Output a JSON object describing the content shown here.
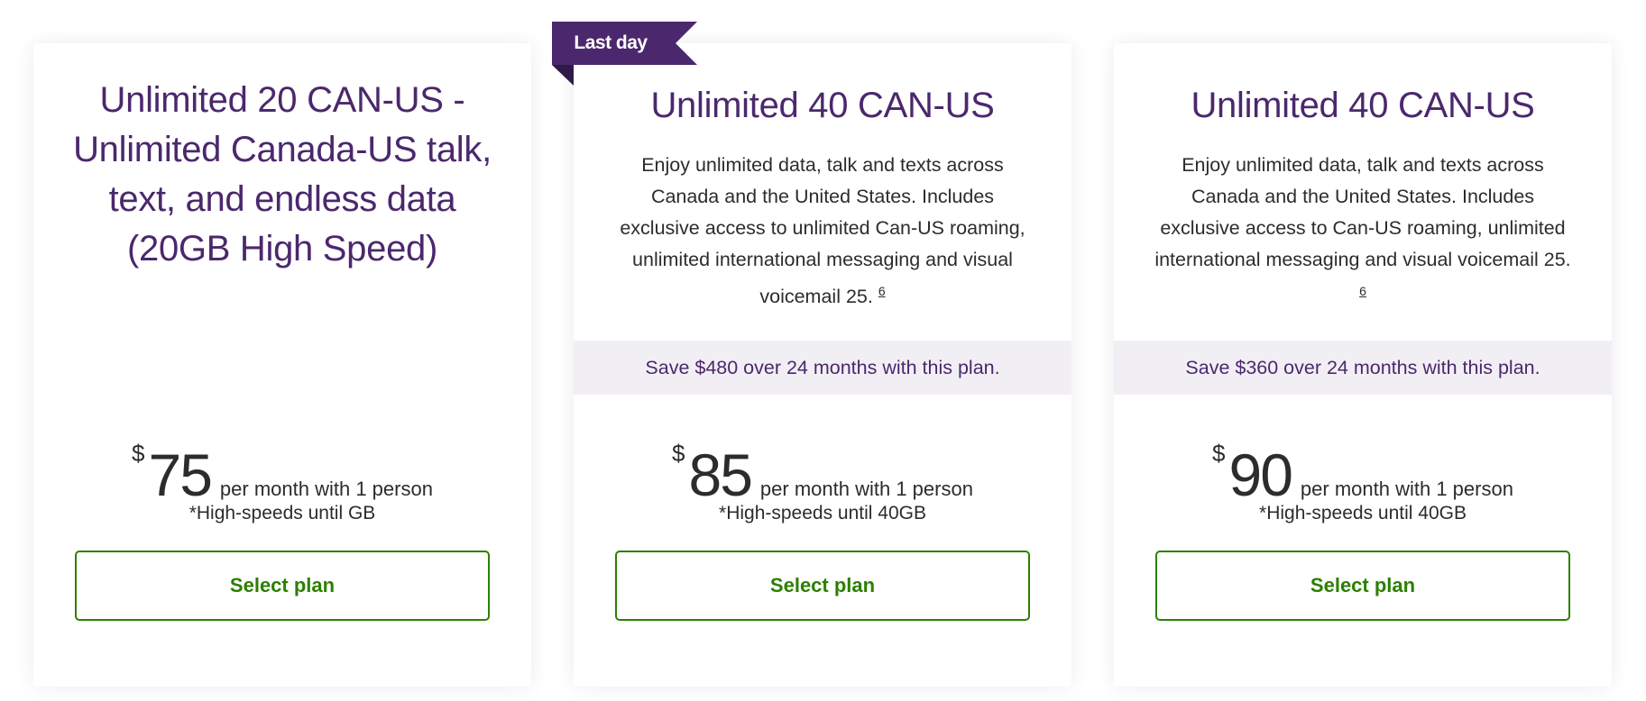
{
  "colors": {
    "brand_purple": "#4b286d",
    "ribbon_fold": "#2e1a46",
    "accent_green": "#2b8000",
    "savings_band": "#f2eff4"
  },
  "plans": [
    {
      "title": "Unlimited 20 CAN-US - Unlimited Canada-US talk, text, and endless data (20GB High Speed)",
      "currency": "$",
      "price": "75",
      "per": "per month with 1 person",
      "speed": "*High-speeds until GB",
      "button": "Select plan"
    },
    {
      "badge": "Last day",
      "title": "Unlimited 40 CAN-US",
      "description": "Enjoy unlimited data, talk and texts across Canada and the United States. Includes exclusive access to unlimited Can-US roaming, unlimited international messaging and visual voicemail 25.",
      "footnote": "6",
      "savings": "Save $480 over 24 months with this plan.",
      "currency": "$",
      "price": "85",
      "per": "per month with 1 person",
      "speed": "*High-speeds until 40GB",
      "button": "Select plan"
    },
    {
      "title": "Unlimited 40 CAN-US",
      "description": "Enjoy unlimited data, talk and texts across Canada and the United States. Includes exclusive access to Can-US roaming, unlimited international messaging and visual voicemail 25.",
      "footnote": "6",
      "savings": "Save $360 over 24 months with this plan.",
      "currency": "$",
      "price": "90",
      "per": "per month with 1 person",
      "speed": "*High-speeds until 40GB",
      "button": "Select plan"
    }
  ]
}
